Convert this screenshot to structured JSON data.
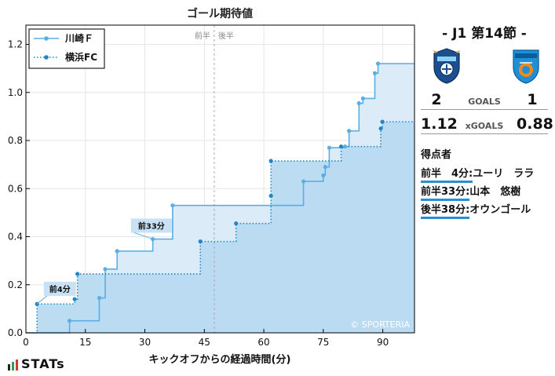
{
  "chart_data": {
    "type": "line",
    "title": "ゴール期待値",
    "xlabel": "キックオフからの経過時間(分)",
    "ylabel": "",
    "xlim": [
      0,
      98
    ],
    "ylim": [
      0,
      1.28
    ],
    "xticks": [
      0,
      15,
      30,
      45,
      60,
      75,
      90
    ],
    "yticks": [
      0.0,
      0.2,
      0.4,
      0.6,
      0.8,
      1.0,
      1.2
    ],
    "grid": true,
    "legend_position": "top-left",
    "halftime": {
      "x": 47.5,
      "labels": [
        "前半",
        "後半"
      ]
    },
    "watermark": "© SPORTERIA",
    "series": [
      {
        "name": "川崎Ｆ",
        "style": "solid",
        "color": "#5aaee2",
        "fill": "#dcebf8",
        "points": [
          [
            0,
            0
          ],
          [
            11,
            0
          ],
          [
            11,
            0.05
          ],
          [
            18.5,
            0.05
          ],
          [
            18.5,
            0.145
          ],
          [
            20,
            0.145
          ],
          [
            20,
            0.265
          ],
          [
            23,
            0.265
          ],
          [
            23,
            0.34
          ],
          [
            32,
            0.34
          ],
          [
            32,
            0.39
          ],
          [
            37,
            0.39
          ],
          [
            37,
            0.53
          ],
          [
            70,
            0.53
          ],
          [
            70,
            0.63
          ],
          [
            75,
            0.63
          ],
          [
            75,
            0.655
          ],
          [
            75.5,
            0.655
          ],
          [
            75.5,
            0.69
          ],
          [
            76.5,
            0.69
          ],
          [
            76.5,
            0.77
          ],
          [
            80.5,
            0.77
          ],
          [
            80.5,
            0.775
          ],
          [
            81.5,
            0.775
          ],
          [
            81.5,
            0.84
          ],
          [
            84,
            0.84
          ],
          [
            84,
            0.955
          ],
          [
            85,
            0.955
          ],
          [
            85,
            0.975
          ],
          [
            88,
            0.975
          ],
          [
            88,
            1.08
          ],
          [
            88.8,
            1.08
          ],
          [
            88.8,
            1.12
          ],
          [
            98,
            1.12
          ]
        ],
        "markers": [
          [
            11,
            0.05
          ],
          [
            18.5,
            0.145
          ],
          [
            20,
            0.265
          ],
          [
            23,
            0.34
          ],
          [
            32,
            0.39
          ],
          [
            37,
            0.53
          ],
          [
            70,
            0.63
          ],
          [
            75,
            0.655
          ],
          [
            75.5,
            0.69
          ],
          [
            76.5,
            0.77
          ],
          [
            80.5,
            0.775
          ],
          [
            81.5,
            0.84
          ],
          [
            84,
            0.955
          ],
          [
            85,
            0.975
          ],
          [
            88,
            1.08
          ],
          [
            88.8,
            1.12
          ]
        ]
      },
      {
        "name": "横浜FC",
        "style": "dotted",
        "color": "#1f86c8",
        "fill": "#b8daf1",
        "points": [
          [
            0,
            0
          ],
          [
            2.8,
            0
          ],
          [
            2.8,
            0.12
          ],
          [
            12.3,
            0.12
          ],
          [
            12.3,
            0.14
          ],
          [
            13,
            0.14
          ],
          [
            13,
            0.245
          ],
          [
            44,
            0.245
          ],
          [
            44,
            0.38
          ],
          [
            53,
            0.38
          ],
          [
            53,
            0.455
          ],
          [
            61.8,
            0.455
          ],
          [
            61.8,
            0.57
          ],
          [
            61.8,
            0.715
          ],
          [
            79.5,
            0.715
          ],
          [
            79.5,
            0.775
          ],
          [
            89.5,
            0.775
          ],
          [
            89.5,
            0.85
          ],
          [
            89.9,
            0.85
          ],
          [
            89.9,
            0.878
          ],
          [
            98,
            0.878
          ]
        ],
        "markers": [
          [
            2.8,
            0.12
          ],
          [
            12.3,
            0.14
          ],
          [
            13,
            0.245
          ],
          [
            44,
            0.38
          ],
          [
            53,
            0.455
          ],
          [
            61.8,
            0.57
          ],
          [
            61.8,
            0.715
          ],
          [
            79.5,
            0.775
          ],
          [
            89.5,
            0.85
          ],
          [
            89.9,
            0.878
          ]
        ]
      }
    ],
    "annotations": [
      {
        "text": "前4分",
        "x": 2.8,
        "y": 0.12,
        "label_x": 4.5,
        "label_y": 0.183
      },
      {
        "text": "前33分",
        "x": 32,
        "y": 0.39,
        "label_x": 26.5,
        "label_y": 0.446
      }
    ]
  },
  "match": {
    "title": "-  J1 第14節  -",
    "home_crest": "kawasaki-frontale-crest",
    "away_crest": "yokohama-fc-crest",
    "goals_label": "GOALS",
    "home_goals": "2",
    "away_goals": "1",
    "xgoals_label": "xGOALS",
    "home_xg": "1.12",
    "away_xg": "0.88"
  },
  "scorers": {
    "title": "得点者",
    "items": [
      {
        "time": "前半　4分:",
        "player": "ユーリ　ララ"
      },
      {
        "time": "前半33分:",
        "player": "山本　悠樹"
      },
      {
        "time": "後半38分:",
        "player": "オウンゴール"
      }
    ]
  },
  "brand": {
    "text": "STATs",
    "bar_colors": [
      "#222222",
      "#2e9e4f",
      "#d23a2e"
    ]
  }
}
